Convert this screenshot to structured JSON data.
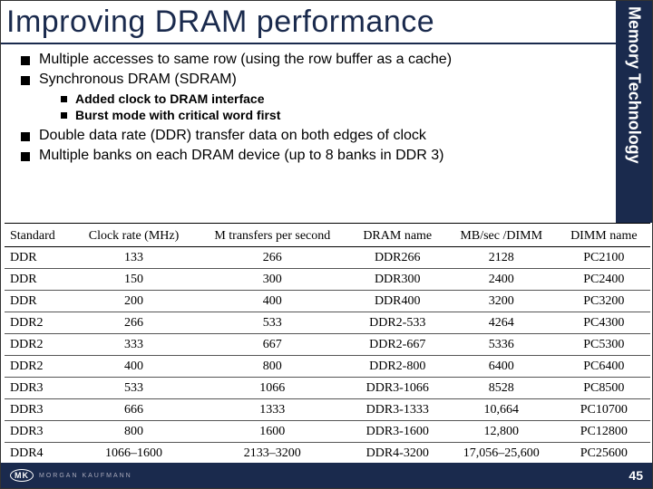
{
  "title": "Improving DRAM performance",
  "side_label": "Memory Technology",
  "bullets": {
    "b1": "Multiple accesses to same row (using the row buffer as a cache)",
    "b2": "Synchronous DRAM (SDRAM)",
    "b2a": "Added clock to DRAM interface",
    "b2b": "Burst mode with critical word first",
    "b3": "Double data rate (DDR) transfer data on both edges of clock",
    "b4": "Multiple banks on each DRAM device (up to 8 banks in DDR 3)"
  },
  "table": {
    "columns": [
      "Standard",
      "Clock rate (MHz)",
      "M transfers per second",
      "DRAM name",
      "MB/sec /DIMM",
      "DIMM name"
    ],
    "rows": [
      [
        "DDR",
        "133",
        "266",
        "DDR266",
        "2128",
        "PC2100"
      ],
      [
        "DDR",
        "150",
        "300",
        "DDR300",
        "2400",
        "PC2400"
      ],
      [
        "DDR",
        "200",
        "400",
        "DDR400",
        "3200",
        "PC3200"
      ],
      [
        "DDR2",
        "266",
        "533",
        "DDR2-533",
        "4264",
        "PC4300"
      ],
      [
        "DDR2",
        "333",
        "667",
        "DDR2-667",
        "5336",
        "PC5300"
      ],
      [
        "DDR2",
        "400",
        "800",
        "DDR2-800",
        "6400",
        "PC6400"
      ],
      [
        "DDR3",
        "533",
        "1066",
        "DDR3-1066",
        "8528",
        "PC8500"
      ],
      [
        "DDR3",
        "666",
        "1333",
        "DDR3-1333",
        "10,664",
        "PC10700"
      ],
      [
        "DDR3",
        "800",
        "1600",
        "DDR3-1600",
        "12,800",
        "PC12800"
      ],
      [
        "DDR4",
        "1066–1600",
        "2133–3200",
        "DDR4-3200",
        "17,056–25,600",
        "PC25600"
      ]
    ]
  },
  "footer": {
    "logo_mk": "MK",
    "logo_text": "MORGAN KAUFMANN",
    "page": "45"
  },
  "colors": {
    "primary": "#1a2a4d",
    "text": "#000000",
    "bg": "#ffffff"
  }
}
